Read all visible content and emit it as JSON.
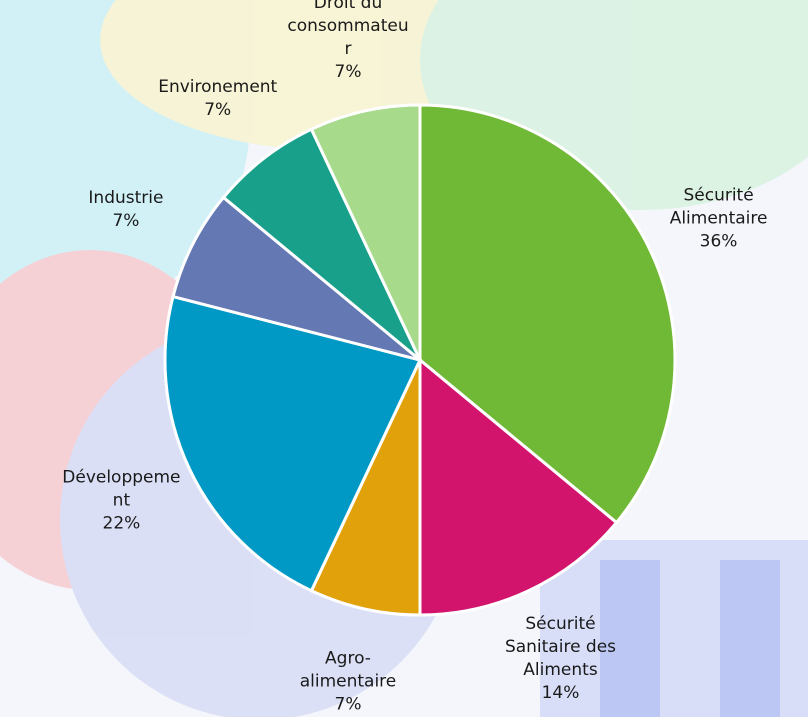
{
  "chart_data": {
    "type": "pie",
    "categories": [
      "Sécurité Alimentaire",
      "Sécurité Sanitaire des Aliments",
      "Agro-alimentaire",
      "Développement",
      "Industrie",
      "Environement",
      "Droit du consommateur"
    ],
    "values": [
      36,
      14,
      7,
      22,
      7,
      7,
      7
    ],
    "value_labels": [
      "36%",
      "14%",
      "7%",
      "22%",
      "7%",
      "7%",
      "7%"
    ],
    "colors": [
      "#6fb936",
      "#d2146d",
      "#e1a10b",
      "#0098c4",
      "#6478b4",
      "#18a08b",
      "#a8da8c"
    ]
  }
}
